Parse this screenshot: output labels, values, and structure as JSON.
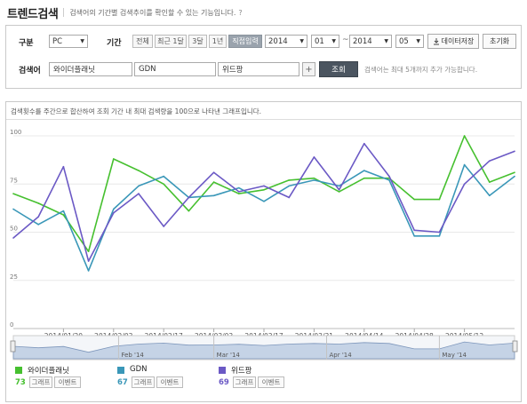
{
  "header": {
    "title": "트렌드검색",
    "description": "검색어의 기간별 검색추이를 확인할 수 있는 기능입니다.",
    "help": "?"
  },
  "form": {
    "device_label": "구분",
    "device_value": "PC",
    "period_label": "기간",
    "period_buttons": [
      "전체",
      "최근 1달",
      "3달",
      "1년",
      "직접입력"
    ],
    "active_period": "직접입력",
    "start_year": "2014",
    "start_month": "01",
    "tilde": "~",
    "end_year": "2014",
    "end_month": "05",
    "save_label": "데이터저장",
    "reset_label": "초기화",
    "keyword_label": "검색어",
    "keywords": [
      "와이더플래닛",
      "GDN",
      "위드팡"
    ],
    "plus": "+",
    "search_label": "조회",
    "note": "검색어는 최대 5개까지 추가 가능합니다."
  },
  "chart_header": "검색횟수를 주간으로 합산하여 조회 기간 내 최대 검색량을 100으로 나타낸 그래프입니다.",
  "chart_data": {
    "type": "line",
    "ylim": [
      0,
      100
    ],
    "yticks": [
      0,
      25,
      50,
      75,
      100
    ],
    "x": [
      "2014-01-06",
      "2014-01-13",
      "2014-01-20",
      "2014-01-27",
      "2014-02-03",
      "2014-02-10",
      "2014-02-17",
      "2014-02-24",
      "2014-03-03",
      "2014-03-10",
      "2014-03-17",
      "2014-03-24",
      "2014-03-31",
      "2014-04-07",
      "2014-04-14",
      "2014-04-21",
      "2014-04-28",
      "2014-05-05",
      "2014-05-12",
      "2014-05-19",
      "2014-05-26"
    ],
    "x_tick_labels": [
      "2014/01/20",
      "2014/02/03",
      "2014/02/17",
      "2014/03/03",
      "2014/03/17",
      "2014/03/31",
      "2014/04/14",
      "2014/04/28",
      "2014/05/12"
    ],
    "navigator_labels": [
      "Feb '14",
      "Mar '14",
      "Apr '14",
      "May '14"
    ],
    "series": [
      {
        "name": "와이더플래닛",
        "color": "#46c02f",
        "values": [
          70,
          65,
          59,
          40,
          88,
          82,
          75,
          61,
          76,
          70,
          72,
          77,
          78,
          71,
          78,
          78,
          67,
          67,
          100,
          76,
          81
        ]
      },
      {
        "name": "GDN",
        "color": "#3a97b8",
        "values": [
          62,
          54,
          61,
          30,
          62,
          74,
          79,
          68,
          69,
          73,
          66,
          74,
          77,
          74,
          82,
          77,
          48,
          48,
          85,
          69,
          79
        ]
      },
      {
        "name": "위드팡",
        "color": "#6b59c5",
        "values": [
          47,
          58,
          84,
          35,
          60,
          70,
          53,
          68,
          81,
          71,
          74,
          68,
          89,
          72,
          96,
          79,
          51,
          50,
          75,
          87,
          92
        ]
      }
    ]
  },
  "legend": [
    {
      "name": "와이더플래닛",
      "value": "73",
      "color": "#46c02f"
    },
    {
      "name": "GDN",
      "value": "67",
      "color": "#3a97b8"
    },
    {
      "name": "위드팡",
      "value": "69",
      "color": "#6b59c5"
    }
  ],
  "legend_buttons": {
    "graph": "그래프",
    "event": "이벤트"
  }
}
